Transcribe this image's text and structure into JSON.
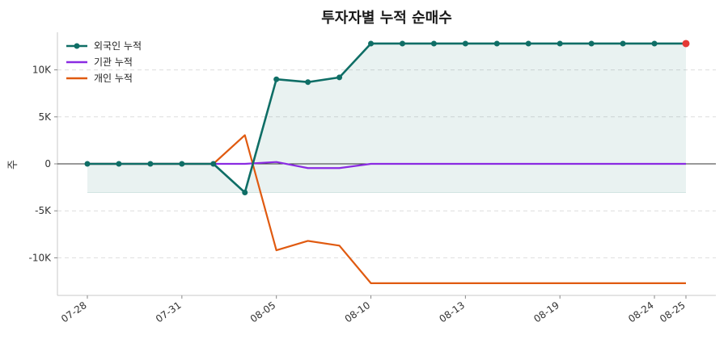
{
  "chart_data": {
    "type": "line",
    "title": "투자자별 누적 순매수",
    "xlabel": "",
    "ylabel": "주",
    "x": [
      "07-28",
      "07-29",
      "07-30",
      "07-31",
      "08-01",
      "08-04",
      "08-05",
      "08-06",
      "08-07",
      "08-10",
      "08-11",
      "08-12",
      "08-13",
      "08-14",
      "08-17",
      "08-19",
      "08-20",
      "08-21",
      "08-24",
      "08-25"
    ],
    "x_tick_labels": [
      "07-28",
      "07-31",
      "08-05",
      "08-10",
      "08-13",
      "08-19",
      "08-24",
      "08-25"
    ],
    "y_tick_labels": [
      "10K",
      "5K",
      "0",
      "-5K",
      "-10K"
    ],
    "y_ticks": [
      10000,
      5000,
      0,
      -5000,
      -10000
    ],
    "ylim": [
      -14000,
      14000
    ],
    "grid": "y-dashed",
    "legend_position": "top-left",
    "series": [
      {
        "name": "외국인 누적",
        "color": "#0f6e66",
        "markers": true,
        "fill": true,
        "values": [
          0,
          0,
          0,
          0,
          0,
          -3050,
          9000,
          8700,
          9200,
          12800,
          12800,
          12800,
          12800,
          12800,
          12800,
          12800,
          12800,
          12800,
          12800,
          12800
        ]
      },
      {
        "name": "기관 누적",
        "color": "#8a2be2",
        "markers": false,
        "fill": false,
        "values": [
          0,
          0,
          0,
          0,
          0,
          0,
          200,
          -450,
          -450,
          0,
          0,
          0,
          0,
          0,
          0,
          0,
          0,
          0,
          0,
          0
        ]
      },
      {
        "name": "개인 누적",
        "color": "#e05a10",
        "markers": false,
        "fill": false,
        "values": [
          0,
          0,
          0,
          0,
          0,
          3050,
          -9200,
          -8200,
          -8700,
          -12700,
          -12700,
          -12700,
          -12700,
          -12700,
          -12700,
          -12700,
          -12700,
          -12700,
          -12700,
          -12700
        ]
      }
    ],
    "last_point_highlight_color": "#e53935"
  }
}
